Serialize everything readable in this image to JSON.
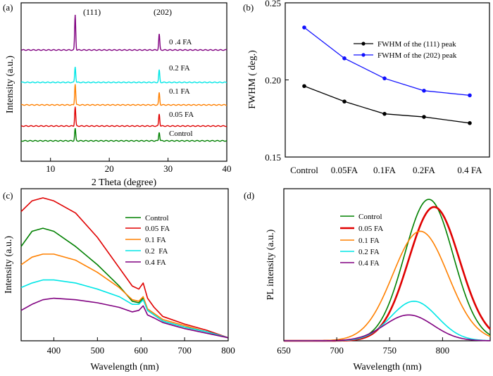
{
  "chart_data": [
    {
      "panel": "(a)",
      "type": "line",
      "xlabel": "2 Theta (degree)",
      "ylabel": "Intensity (a.u.)",
      "xlim": [
        5,
        40
      ],
      "xticks": [
        10,
        20,
        30,
        40
      ],
      "peak_labels": [
        {
          "text": "(111)",
          "x": 14.2
        },
        {
          "text": "(202)",
          "x": 28.5
        }
      ],
      "peaks": [
        14.2,
        28.5
      ],
      "series": [
        {
          "name": "0 .4 FA",
          "color": "#800080",
          "peak_heights": [
            1.0,
            0.45
          ]
        },
        {
          "name": "0.2 FA",
          "color": "#00e6e6",
          "peak_heights": [
            0.45,
            0.35
          ]
        },
        {
          "name": "0.1 FA",
          "color": "#ff8000",
          "peak_heights": [
            0.6,
            0.35
          ]
        },
        {
          "name": "0.05 FA",
          "color": "#e00000",
          "peak_heights": [
            0.55,
            0.35
          ]
        },
        {
          "name": "Control",
          "color": "#008000",
          "peak_heights": [
            0.35,
            0.25
          ]
        }
      ]
    },
    {
      "panel": "(b)",
      "type": "line",
      "categories": [
        "Control",
        "0.05FA",
        "0.1FA",
        "0.2FA",
        "0.4 FA"
      ],
      "ylabel": "FWHM ( deg.)",
      "ylim": [
        0.15,
        0.25
      ],
      "yticks": [
        "0.15",
        "0.20",
        "0.25"
      ],
      "legend_position": "right",
      "series": [
        {
          "name": "FWHM of the (111) peak",
          "color": "#000000",
          "values": [
            0.196,
            0.186,
            0.178,
            0.176,
            0.172
          ]
        },
        {
          "name": "FWHM of the (202) peak",
          "color": "#1010ff",
          "values": [
            0.234,
            0.214,
            0.201,
            0.193,
            0.19
          ]
        }
      ]
    },
    {
      "panel": "(c)",
      "type": "line",
      "xlabel": "Wavelength (nm)",
      "ylabel": "Intensity (a.u.)",
      "xlim": [
        325,
        800
      ],
      "xticks": [
        400,
        500,
        600,
        700,
        800
      ],
      "ylim": [
        0,
        1
      ],
      "legend_position": "top-right",
      "x": [
        325,
        350,
        375,
        400,
        450,
        500,
        550,
        580,
        595,
        605,
        615,
        630,
        650,
        700,
        750,
        800
      ],
      "series": [
        {
          "name": "Control",
          "color": "#008000",
          "values": [
            0.62,
            0.72,
            0.74,
            0.72,
            0.62,
            0.5,
            0.36,
            0.26,
            0.25,
            0.28,
            0.2,
            0.17,
            0.13,
            0.09,
            0.06,
            0.02
          ]
        },
        {
          "name": "0.05 FA",
          "color": "#e00000",
          "values": [
            0.85,
            0.92,
            0.94,
            0.92,
            0.84,
            0.68,
            0.48,
            0.36,
            0.34,
            0.38,
            0.28,
            0.22,
            0.16,
            0.11,
            0.07,
            0.02
          ]
        },
        {
          "name": "0.1 FA",
          "color": "#ff8000",
          "values": [
            0.5,
            0.55,
            0.57,
            0.57,
            0.53,
            0.45,
            0.35,
            0.27,
            0.26,
            0.29,
            0.21,
            0.18,
            0.14,
            0.1,
            0.06,
            0.02
          ]
        },
        {
          "name": "0.2  FA",
          "color": "#00e6e6",
          "values": [
            0.35,
            0.38,
            0.4,
            0.4,
            0.38,
            0.34,
            0.29,
            0.24,
            0.24,
            0.27,
            0.2,
            0.17,
            0.13,
            0.09,
            0.06,
            0.02
          ]
        },
        {
          "name": "0.4 FA",
          "color": "#800080",
          "values": [
            0.2,
            0.24,
            0.27,
            0.28,
            0.27,
            0.25,
            0.22,
            0.19,
            0.2,
            0.23,
            0.17,
            0.15,
            0.12,
            0.08,
            0.05,
            0.02
          ]
        }
      ]
    },
    {
      "panel": "(d)",
      "type": "line",
      "xlabel": "Wavelength (nm)",
      "ylabel": "PL intensity (a.u.)",
      "xlim": [
        650,
        845
      ],
      "xticks": [
        650,
        700,
        750,
        800
      ],
      "ylim": [
        0,
        1
      ],
      "legend_position": "top-left",
      "series": [
        {
          "name": "Control",
          "color": "#008000",
          "peak": 787,
          "width": 23,
          "height": 0.93
        },
        {
          "name": "0.05 FA",
          "color": "#e00000",
          "peak": 792,
          "width": 24,
          "height": 0.88
        },
        {
          "name": "0.1 FA",
          "color": "#ff8000",
          "peak": 779,
          "width": 26,
          "height": 0.72
        },
        {
          "name": "0.2 FA",
          "color": "#00e6e6",
          "peak": 773,
          "width": 22,
          "height": 0.26
        },
        {
          "name": "0.4 FA",
          "color": "#800080",
          "peak": 768,
          "width": 23,
          "height": 0.17
        }
      ]
    }
  ]
}
